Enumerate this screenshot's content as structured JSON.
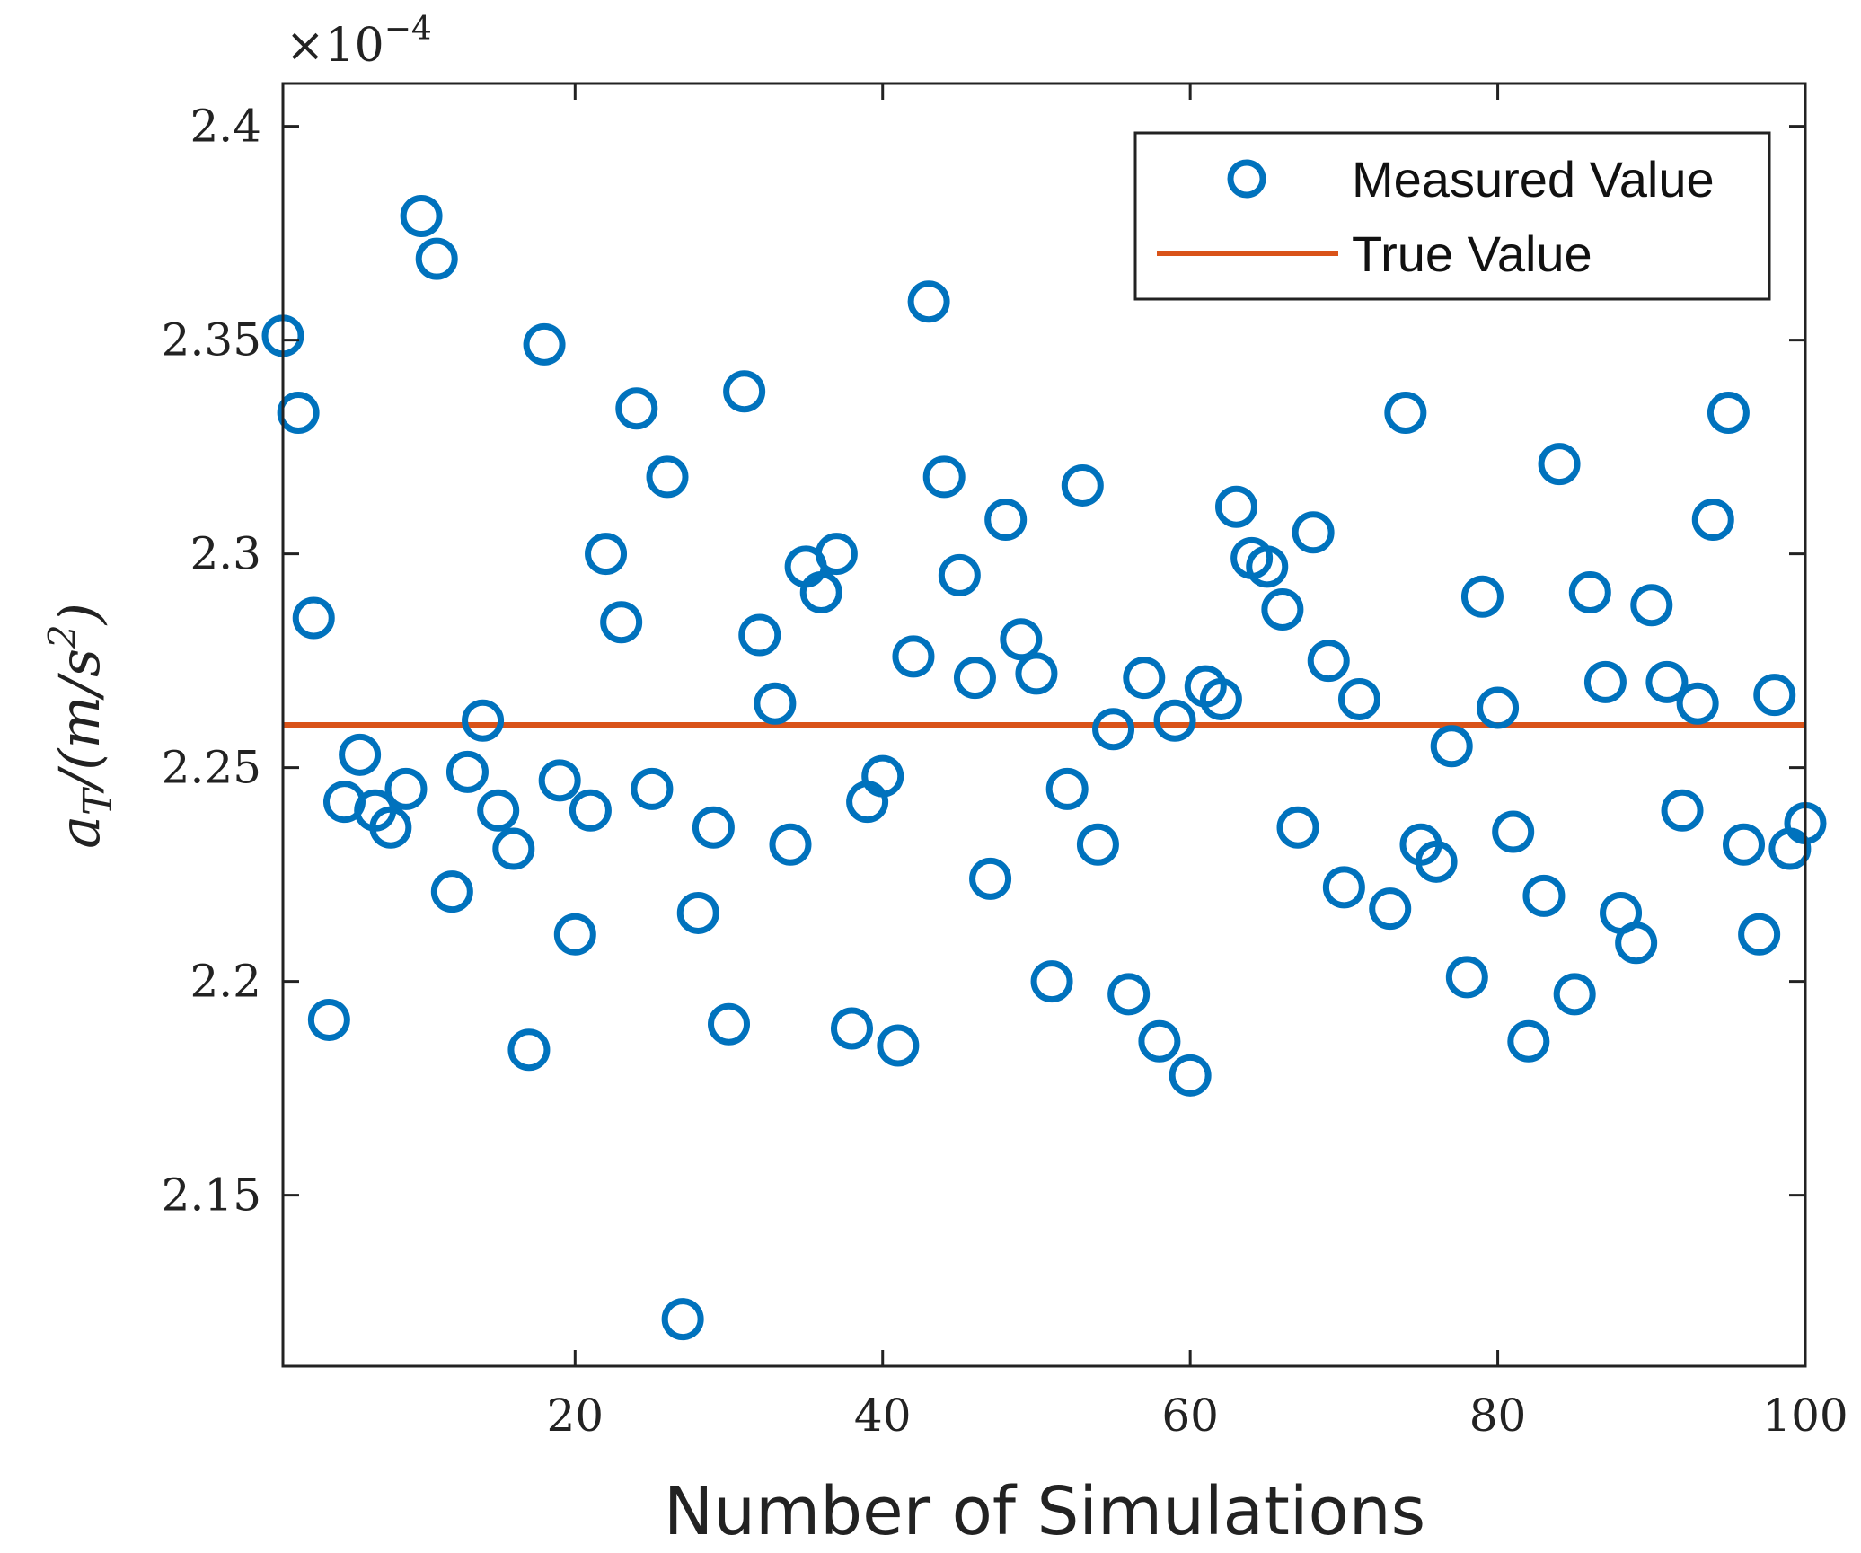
{
  "chart_data": {
    "type": "scatter",
    "title": "",
    "xlabel": "Number of Simulations",
    "ylabel": {
      "base": "a",
      "subscript": "T",
      "rest": "/(m/s",
      "superscript": "2",
      "close": ")"
    },
    "exponent_label": {
      "times": "×10",
      "power": "−4"
    },
    "xlim": [
      1,
      100
    ],
    "ylim": [
      2.11,
      2.41
    ],
    "x_ticks": [
      20,
      40,
      60,
      80,
      100
    ],
    "x_tick_labels": [
      "20",
      "40",
      "60",
      "80",
      "100"
    ],
    "y_ticks": [
      2.15,
      2.2,
      2.25,
      2.3,
      2.35,
      2.4
    ],
    "y_tick_labels": [
      "2.15",
      "2.2",
      "2.25",
      "2.3",
      "2.35",
      "2.4"
    ],
    "grid": false,
    "legend_position": "top-right",
    "series": [
      {
        "name": "Measured Value",
        "marker": "circle-open",
        "color": "#0072BD",
        "x": [
          1,
          2,
          3,
          4,
          5,
          6,
          7,
          8,
          9,
          10,
          11,
          12,
          13,
          14,
          15,
          16,
          17,
          18,
          19,
          20,
          21,
          22,
          23,
          24,
          25,
          26,
          27,
          28,
          29,
          30,
          31,
          32,
          33,
          34,
          35,
          36,
          37,
          38,
          39,
          40,
          41,
          42,
          43,
          44,
          45,
          46,
          47,
          48,
          49,
          50,
          51,
          52,
          53,
          54,
          55,
          56,
          57,
          58,
          59,
          60,
          61,
          62,
          63,
          64,
          65,
          66,
          67,
          68,
          69,
          70,
          71,
          73,
          74,
          75,
          76,
          77,
          78,
          79,
          80,
          81,
          82,
          83,
          84,
          85,
          86,
          87,
          88,
          89,
          90,
          91,
          92,
          93,
          94,
          95,
          96,
          97,
          98,
          99,
          100
        ],
        "y": [
          2.351,
          2.333,
          2.285,
          2.191,
          2.242,
          2.253,
          2.24,
          2.236,
          2.245,
          2.379,
          2.369,
          2.221,
          2.249,
          2.261,
          2.24,
          2.231,
          2.184,
          2.349,
          2.247,
          2.211,
          2.24,
          2.3,
          2.284,
          2.334,
          2.245,
          2.318,
          2.121,
          2.216,
          2.236,
          2.19,
          2.338,
          2.281,
          2.265,
          2.232,
          2.297,
          2.291,
          2.3,
          2.189,
          2.242,
          2.248,
          2.185,
          2.276,
          2.359,
          2.318,
          2.295,
          2.271,
          2.224,
          2.308,
          2.28,
          2.272,
          2.2,
          2.245,
          2.316,
          2.232,
          2.259,
          2.197,
          2.271,
          2.186,
          2.261,
          2.178,
          2.269,
          2.266,
          2.311,
          2.299,
          2.297,
          2.287,
          2.236,
          2.305,
          2.275,
          2.222,
          2.266,
          2.217,
          2.333,
          2.232,
          2.228,
          2.255,
          2.201,
          2.29,
          2.264,
          2.235,
          2.186,
          2.22,
          2.321,
          2.197,
          2.291,
          2.27,
          2.216,
          2.209,
          2.288,
          2.27,
          2.24,
          2.265,
          2.308,
          2.333,
          2.232,
          2.211,
          2.267,
          2.231,
          2.237
        ]
      },
      {
        "name": "True Value",
        "type": "line",
        "color": "#D95319",
        "x": [
          1,
          100
        ],
        "y": [
          2.26,
          2.26
        ]
      }
    ]
  }
}
